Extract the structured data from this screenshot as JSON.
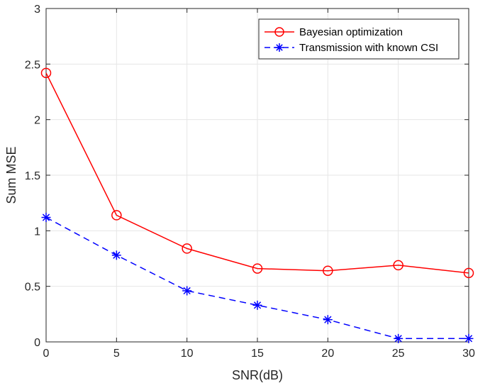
{
  "chart_data": {
    "type": "line",
    "title": "",
    "xlabel": "SNR(dB)",
    "ylabel": "Sum MSE",
    "xlim": [
      0,
      30
    ],
    "ylim": [
      0,
      3
    ],
    "xticks": [
      0,
      5,
      10,
      15,
      20,
      25,
      30
    ],
    "yticks": [
      0,
      0.5,
      1,
      1.5,
      2,
      2.5,
      3
    ],
    "grid": true,
    "legend_position": "top-right",
    "x": [
      0,
      5,
      10,
      15,
      20,
      25,
      30
    ],
    "series": [
      {
        "name": "Bayesian optimization",
        "values": [
          2.42,
          1.14,
          0.84,
          0.66,
          0.64,
          0.69,
          0.62
        ],
        "color": "#ff0000",
        "line_style": "solid",
        "marker": "circle"
      },
      {
        "name": "Transmission with known CSI",
        "values": [
          1.12,
          0.78,
          0.46,
          0.33,
          0.2,
          0.03,
          0.03
        ],
        "color": "#0000ff",
        "line_style": "dashed",
        "marker": "asterisk"
      }
    ]
  }
}
